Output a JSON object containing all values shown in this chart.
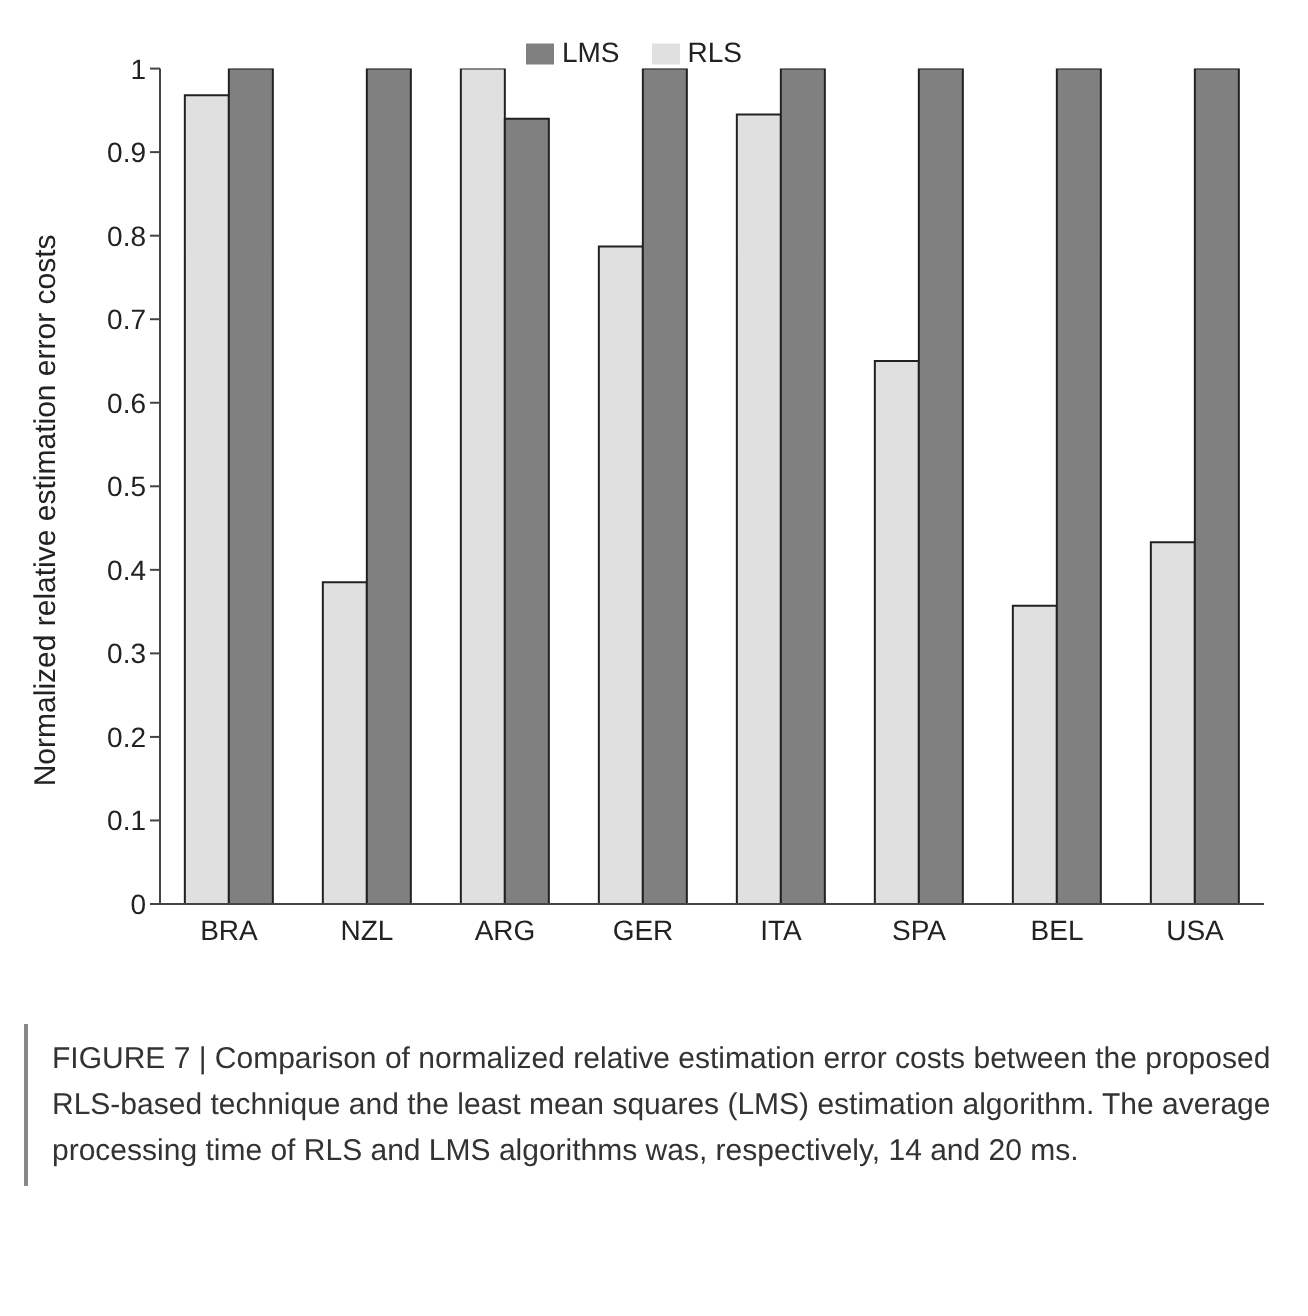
{
  "chart_data": {
    "type": "bar",
    "ylabel": "Normalized relative estimation error costs",
    "categories": [
      "BRA",
      "NZL",
      "ARG",
      "GER",
      "ITA",
      "SPA",
      "BEL",
      "USA"
    ],
    "series": [
      {
        "name": "RLS",
        "color": "#e0e0e0",
        "values": [
          0.968,
          0.385,
          1,
          0.787,
          0.945,
          0.65,
          0.357,
          0.433
        ]
      },
      {
        "name": "LMS",
        "color": "#808080",
        "values": [
          1,
          1,
          0.94,
          1,
          1,
          1,
          1,
          1
        ]
      }
    ],
    "ylim": [
      0,
      1
    ],
    "yticks": [
      0,
      0.1,
      0.2,
      0.3,
      0.4,
      0.5,
      0.6,
      0.7,
      0.8,
      0.9,
      1
    ],
    "legend": "top",
    "annotations": [
      "FIGURE 7 | Comparison of normalized relative estimation error costs between the proposed RLS-based technique and the least mean squares (LMS) estimation algorithm. The average processing time of RLS and LMS algorithms was, respectively, 14 and 20 ms."
    ]
  }
}
